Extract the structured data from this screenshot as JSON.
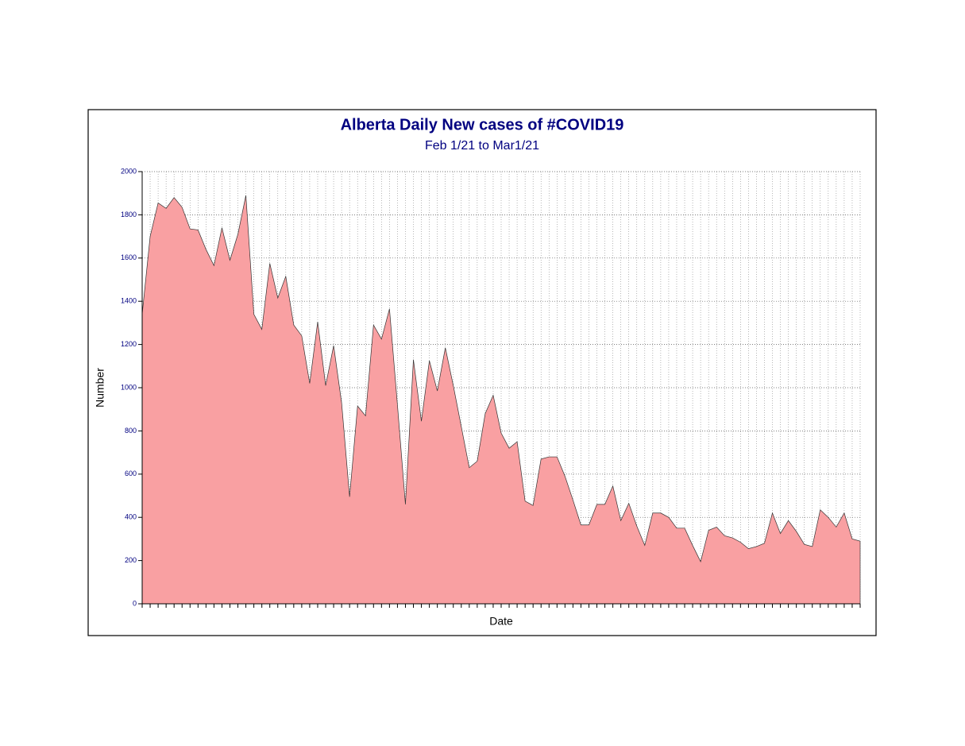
{
  "chart_data": {
    "type": "area",
    "title": "Alberta Daily New cases of #COVID19",
    "subtitle": "Feb 1/21  to Mar1/21",
    "x_label": "Date",
    "y_label": "Number",
    "categories": [
      null,
      null,
      null,
      null,
      null,
      null,
      null,
      null,
      null,
      null,
      null,
      null,
      null,
      null,
      null,
      null,
      null,
      null,
      null,
      null,
      null,
      null,
      null,
      null,
      null,
      null,
      null,
      null,
      null,
      null,
      null,
      null,
      null,
      null,
      null,
      null,
      null,
      null,
      null,
      null,
      null,
      null,
      null,
      null,
      null,
      null,
      null,
      null,
      null,
      null,
      null,
      null,
      null,
      null,
      null,
      null,
      null,
      null,
      null,
      null,
      null,
      null,
      null,
      null,
      null,
      null,
      null,
      null,
      null,
      null,
      null,
      null,
      null,
      null,
      null,
      null,
      null,
      null,
      null,
      null,
      null,
      null,
      null,
      null,
      null,
      null,
      null,
      null,
      null,
      null,
      null
    ],
    "values": [
      1340,
      1700,
      1855,
      1830,
      1880,
      1835,
      1735,
      1730,
      1640,
      1565,
      1740,
      1590,
      1710,
      1890,
      1340,
      1270,
      1575,
      1415,
      1515,
      1290,
      1240,
      1020,
      1305,
      1010,
      1195,
      930,
      495,
      915,
      870,
      1290,
      1225,
      1365,
      920,
      460,
      1130,
      845,
      1125,
      985,
      1185,
      1010,
      820,
      630,
      660,
      880,
      965,
      790,
      720,
      750,
      475,
      455,
      670,
      680,
      680,
      590,
      480,
      365,
      365,
      460,
      460,
      545,
      385,
      465,
      360,
      270,
      420,
      420,
      400,
      350,
      350,
      270,
      195,
      340,
      355,
      315,
      305,
      285,
      255,
      265,
      280,
      420,
      325,
      385,
      335,
      275,
      265,
      435,
      400,
      355,
      420,
      300,
      290
    ],
    "color": "#f9a0a2",
    "ylim": [
      0,
      2000
    ],
    "yticks": [
      0,
      200,
      400,
      600,
      800,
      1000,
      1200,
      1400,
      1600,
      1800,
      2000
    ],
    "grid": true
  }
}
